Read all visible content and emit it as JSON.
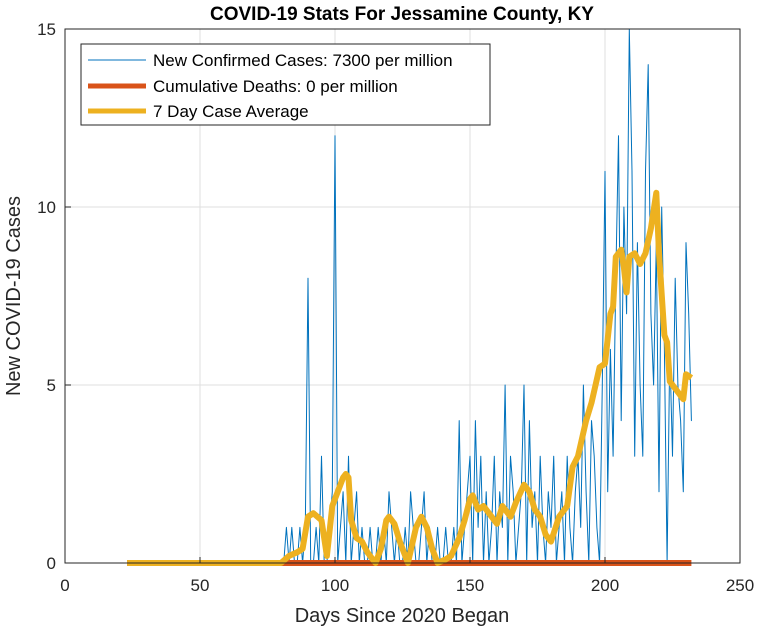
{
  "chart_data": {
    "type": "line",
    "title": "COVID-19 Stats For Jessamine County, KY",
    "xlabel": "Days Since 2020 Began",
    "ylabel": "New COVID-19 Cases",
    "xlim": [
      0,
      250
    ],
    "ylim": [
      0,
      15
    ],
    "xticks": [
      0,
      50,
      100,
      150,
      200,
      250
    ],
    "yticks": [
      0,
      5,
      10,
      15
    ],
    "grid": true,
    "legend_position": "top-left",
    "series": [
      {
        "name": "New Confirmed Cases: 7300 per million",
        "color": "#0072BD",
        "style": "thin-line",
        "x": [
          23,
          80,
          81,
          82,
          83,
          84,
          85,
          86,
          87,
          88,
          89,
          90,
          91,
          92,
          93,
          94,
          95,
          96,
          97,
          98,
          99,
          100,
          101,
          102,
          103,
          104,
          105,
          106,
          107,
          108,
          109,
          110,
          111,
          112,
          113,
          114,
          115,
          116,
          117,
          118,
          119,
          120,
          121,
          122,
          123,
          124,
          125,
          126,
          127,
          128,
          129,
          130,
          131,
          132,
          133,
          134,
          135,
          136,
          137,
          138,
          139,
          140,
          141,
          142,
          143,
          144,
          145,
          146,
          147,
          148,
          149,
          150,
          151,
          152,
          153,
          154,
          155,
          156,
          157,
          158,
          159,
          160,
          161,
          162,
          163,
          164,
          165,
          166,
          167,
          168,
          169,
          170,
          171,
          172,
          173,
          174,
          175,
          176,
          177,
          178,
          179,
          180,
          181,
          182,
          183,
          184,
          185,
          186,
          187,
          188,
          189,
          190,
          191,
          192,
          193,
          194,
          195,
          196,
          197,
          198,
          199,
          200,
          201,
          202,
          203,
          204,
          205,
          206,
          207,
          208,
          209,
          210,
          211,
          212,
          213,
          214,
          215,
          216,
          217,
          218,
          219,
          220,
          221,
          222,
          223,
          224,
          225,
          226,
          227,
          228,
          229,
          230,
          231,
          232
        ],
        "y": [
          0,
          0,
          0,
          1,
          0,
          1,
          0,
          0,
          1,
          0,
          1,
          8,
          0,
          0,
          1,
          0,
          3,
          0,
          0,
          1,
          2,
          12,
          0,
          1,
          2,
          0,
          3,
          0,
          1,
          2,
          0,
          1,
          0,
          0,
          1,
          0,
          0,
          1,
          0,
          1,
          0,
          2,
          1,
          0,
          1,
          0,
          0,
          1,
          0,
          2,
          1,
          0,
          0,
          1,
          2,
          0,
          1,
          0,
          0,
          1,
          0,
          0,
          1,
          0,
          0,
          1,
          0,
          4,
          0,
          1,
          2,
          3,
          0,
          4,
          1,
          3,
          0,
          2,
          0,
          1,
          3,
          0,
          2,
          1,
          5,
          0,
          3,
          2,
          0,
          1,
          2,
          5,
          0,
          4,
          1,
          2,
          0,
          3,
          1,
          0,
          2,
          1,
          3,
          0,
          1,
          2,
          0,
          3,
          1,
          0,
          2,
          3,
          1,
          5,
          2,
          0,
          4,
          3,
          1,
          0,
          5,
          11,
          2,
          6,
          3,
          8,
          12,
          4,
          10,
          7,
          15,
          11,
          3,
          9,
          5,
          3,
          11,
          14,
          7,
          5,
          9,
          2,
          10,
          6,
          0,
          6,
          3,
          8,
          5,
          4,
          2,
          9,
          7,
          4
        ]
      },
      {
        "name": "Cumulative Deaths: 0 per million",
        "color": "#D95319",
        "style": "thick-line",
        "x": [
          23,
          232
        ],
        "y": [
          0,
          0
        ]
      },
      {
        "name": "7 Day Case Average",
        "color": "#EDB120",
        "style": "thick-line",
        "x": [
          23,
          80,
          83,
          86,
          88,
          90,
          92,
          95,
          97,
          99,
          101,
          103,
          104,
          105,
          106,
          108,
          110,
          112,
          115,
          117,
          119,
          120,
          122,
          124,
          127,
          130,
          132,
          134,
          136,
          138,
          141,
          143,
          146,
          148,
          150,
          151,
          153,
          155,
          157,
          160,
          162,
          165,
          167,
          170,
          172,
          174,
          176,
          178,
          180,
          183,
          186,
          188,
          190,
          193,
          195,
          198,
          200,
          202,
          203,
          204,
          206,
          207,
          208,
          209,
          211,
          213,
          215,
          217,
          219,
          220,
          222,
          223,
          224,
          227,
          229,
          230,
          232
        ],
        "y": [
          0,
          0,
          0.2,
          0.3,
          0.4,
          1.3,
          1.4,
          1.2,
          0.2,
          1.6,
          2,
          2.4,
          2.5,
          2.4,
          1.2,
          0.7,
          0.6,
          0.3,
          0,
          0.4,
          1.2,
          1.3,
          1.1,
          0.6,
          0,
          1,
          1.3,
          1,
          0.4,
          0,
          0.1,
          0.2,
          0.7,
          1.2,
          1.8,
          1.9,
          1.5,
          1.6,
          1.4,
          1.1,
          1.6,
          1.3,
          1.7,
          2.2,
          2,
          1.5,
          1.3,
          0.8,
          0.6,
          1.3,
          1.6,
          2.7,
          3,
          4,
          4.5,
          5.5,
          5.6,
          7,
          7.2,
          8.6,
          8.8,
          8.3,
          7.6,
          8.6,
          8.7,
          8.4,
          8.7,
          9.4,
          10.4,
          8.7,
          6.4,
          6.2,
          5.1,
          4.8,
          4.6,
          5.3,
          5.2
        ]
      }
    ]
  }
}
